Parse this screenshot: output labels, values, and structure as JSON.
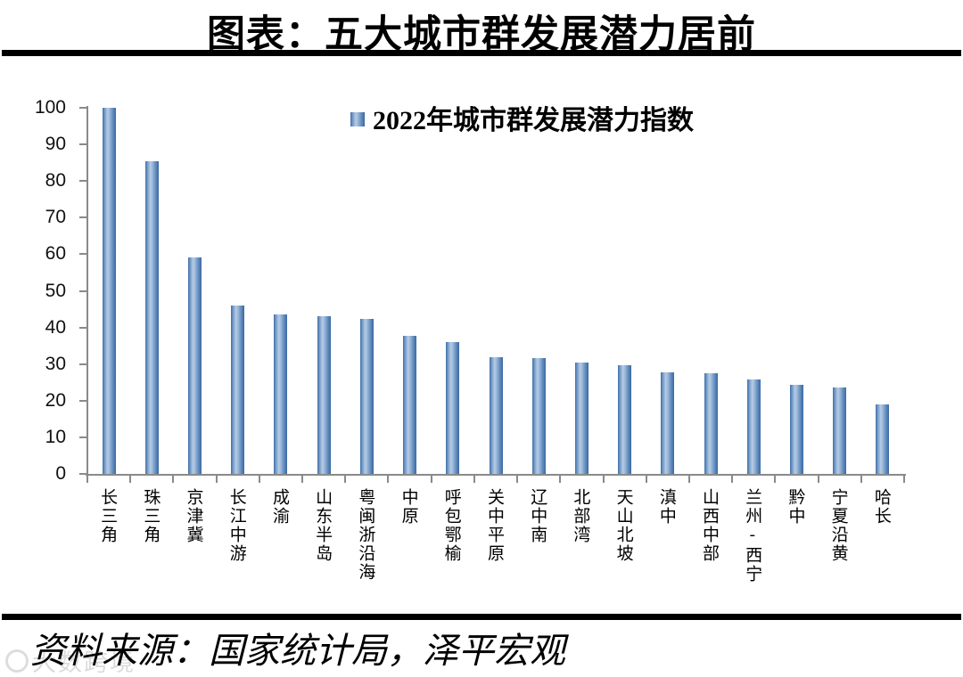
{
  "header": {
    "title": "图表：五大城市群发展潜力居前"
  },
  "chart_data": {
    "type": "bar",
    "title": "2022年城市群发展潜力指数",
    "legend": [
      "2022年城市群发展潜力指数"
    ],
    "legend_position": "top-center",
    "categories": [
      "长三角",
      "珠三角",
      "京津冀",
      "长江中游",
      "成渝",
      "山东半岛",
      "粤闽浙沿海",
      "中原",
      "呼包鄂榆",
      "关中平原",
      "辽中南",
      "北部湾",
      "天山北坡",
      "滇中",
      "山西中部",
      "兰州-西宁",
      "黔中",
      "宁夏沿黄",
      "哈长"
    ],
    "values": [
      100,
      85.5,
      59.1,
      46.1,
      43.6,
      43.1,
      42.4,
      37.6,
      35.9,
      31.8,
      31.6,
      30.3,
      29.7,
      27.8,
      27.5,
      25.7,
      24.3,
      23.6,
      18.9
    ],
    "xlabel": "",
    "ylabel": "",
    "ylim": [
      0,
      100
    ],
    "yticks": [
      0,
      10,
      20,
      30,
      40,
      50,
      60,
      70,
      80,
      90,
      100
    ],
    "grid": "off",
    "bar_color": "#3a6aa5",
    "bar_gradient_edge": "#3f6fa8",
    "bar_gradient_center": "#b6cce5",
    "axis_color": "#8a8a8a"
  },
  "footer": {
    "source": "资料来源：国家统计局，泽平宏观"
  },
  "watermark": {
    "text": "大数跨境"
  }
}
